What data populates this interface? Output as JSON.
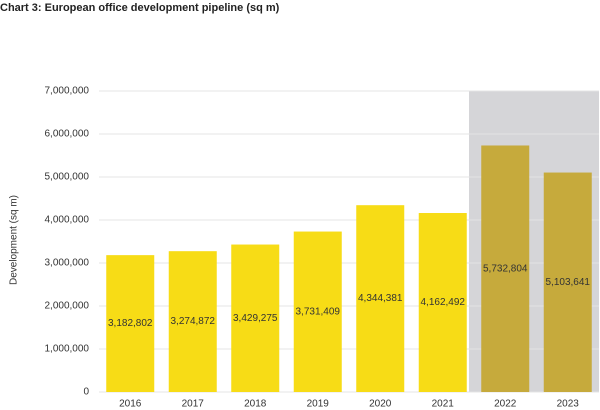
{
  "chart_data": {
    "type": "bar",
    "title": "Chart 3: European office development pipeline (sq m)",
    "y_label": "Development (sq m)",
    "categories": [
      "2016",
      "2017",
      "2018",
      "2019",
      "2020",
      "2021",
      "2022",
      "2023"
    ],
    "values": [
      3182802,
      3274872,
      3429275,
      3731409,
      4344381,
      4162492,
      5732804,
      5103641
    ],
    "value_labels": [
      "3,182,802",
      "3,274,872",
      "3,429,275",
      "3,731,409",
      "4,344,381",
      "4,162,492",
      "5,732,804",
      "5,103,641"
    ],
    "colors": [
      "#f7dc16",
      "#f7dc16",
      "#f7dc16",
      "#f7dc16",
      "#f7dc16",
      "#f7dc16",
      "#c6aa3c",
      "#c6aa3c"
    ],
    "shade": {
      "start": 6,
      "end": 7,
      "color": "#d5d5d8"
    },
    "ylim": [
      0,
      7000000
    ],
    "yticks": [
      0,
      {
        "value": 1000000,
        "label": "1,000,000"
      },
      {
        "value": 2000000,
        "label": "2,000,000"
      },
      {
        "value": 3000000,
        "label": "3,000,000"
      },
      {
        "value": 4000000,
        "label": "4,000,000"
      },
      {
        "value": 5000000,
        "label": "5,000,000"
      },
      {
        "value": 6000000,
        "label": "6,000,000"
      },
      {
        "value": 7000000,
        "label": "7,000,000"
      }
    ],
    "grid": true
  }
}
